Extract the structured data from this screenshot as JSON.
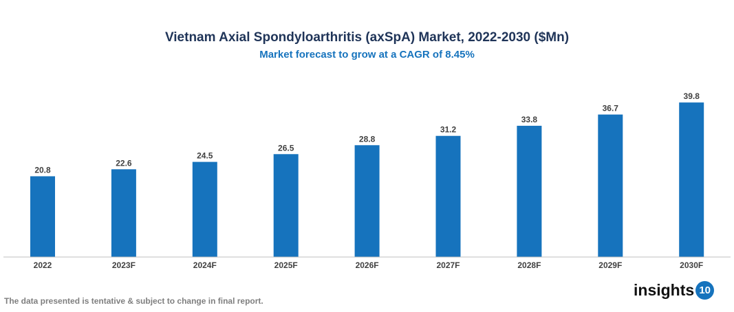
{
  "chart_data": {
    "type": "bar",
    "title": "Vietnam Axial Spondyloarthritis (axSpA) Market, 2022-2030 ($Mn)",
    "subtitle": "Market forecast to grow at a CAGR of 8.45%",
    "categories": [
      "2022",
      "2023F",
      "2024F",
      "2025F",
      "2026F",
      "2027F",
      "2028F",
      "2029F",
      "2030F"
    ],
    "values": [
      20.8,
      22.6,
      24.5,
      26.5,
      28.8,
      31.2,
      33.8,
      36.7,
      39.8
    ],
    "xlabel": "",
    "ylabel": "",
    "ylim": [
      0,
      40
    ],
    "grid": false,
    "bar_color": "#1673bd"
  },
  "footnote": "The data presented is tentative & subject to change in final report.",
  "logo": {
    "text": "insights",
    "badge": "10"
  }
}
